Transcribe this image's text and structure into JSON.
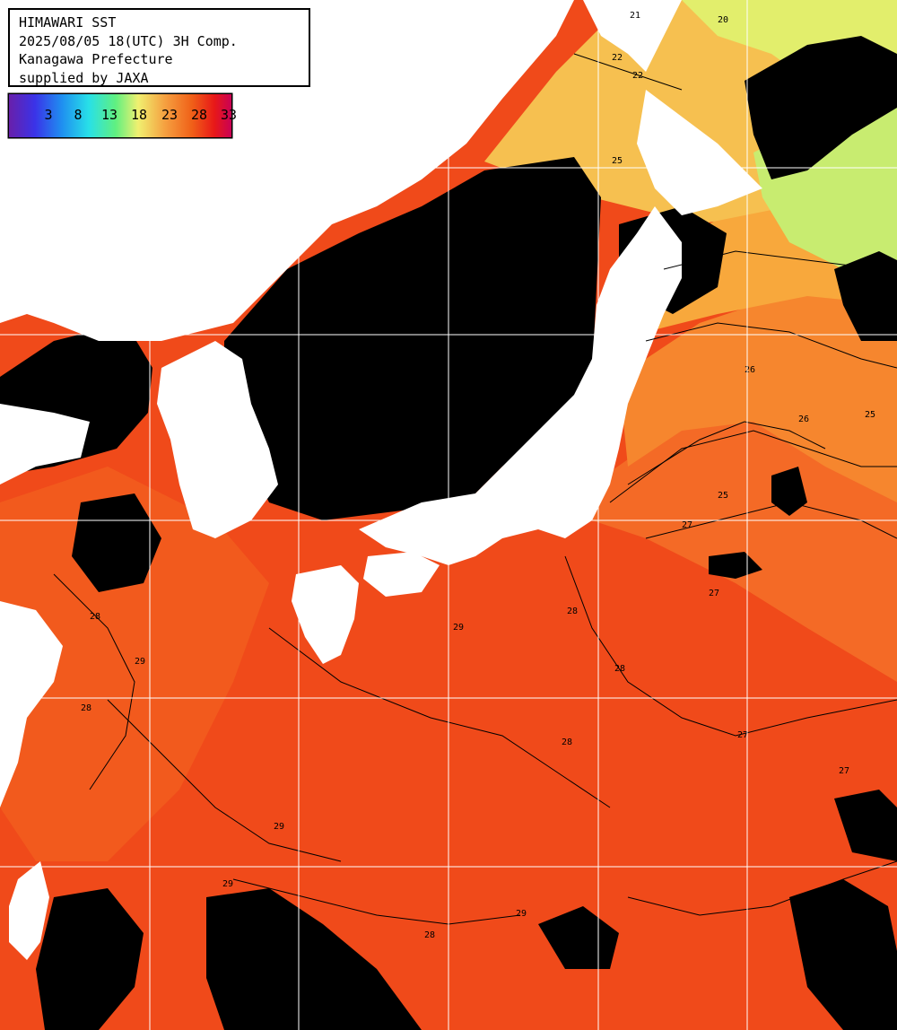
{
  "header": {
    "line1": "HIMAWARI SST",
    "line2": "2025/08/05 18(UTC) 3H Comp.",
    "line3": "Kanagawa Prefecture",
    "line4": "supplied by JAXA"
  },
  "legend": {
    "ticks": [
      "3",
      "8",
      "13",
      "18",
      "23",
      "28",
      "33"
    ],
    "gradient": [
      "#6a1fa8",
      "#3a33e8",
      "#1f8ff0",
      "#28e0e8",
      "#60f080",
      "#f0f070",
      "#f5a040",
      "#f06018",
      "#e81818",
      "#c80058"
    ]
  },
  "map": {
    "colors": {
      "land": "#ffffff",
      "cloud": "#000000",
      "warm_sea": "#f04a1a",
      "sea_28": "#f25d1f",
      "sea_27": "#f67428",
      "sea_25": "#f8a33a",
      "sea_22": "#f7c24a",
      "sea_20": "#e6ee6a",
      "grid": "#ffffff",
      "contour": "#000000"
    },
    "contour_labels": [
      "21",
      "20",
      "22",
      "22",
      "25",
      "25",
      "26",
      "26",
      "25",
      "27",
      "28",
      "27",
      "27",
      "28",
      "29",
      "29",
      "28",
      "28",
      "27",
      "29",
      "28",
      "29",
      "28",
      "29",
      "28"
    ]
  }
}
